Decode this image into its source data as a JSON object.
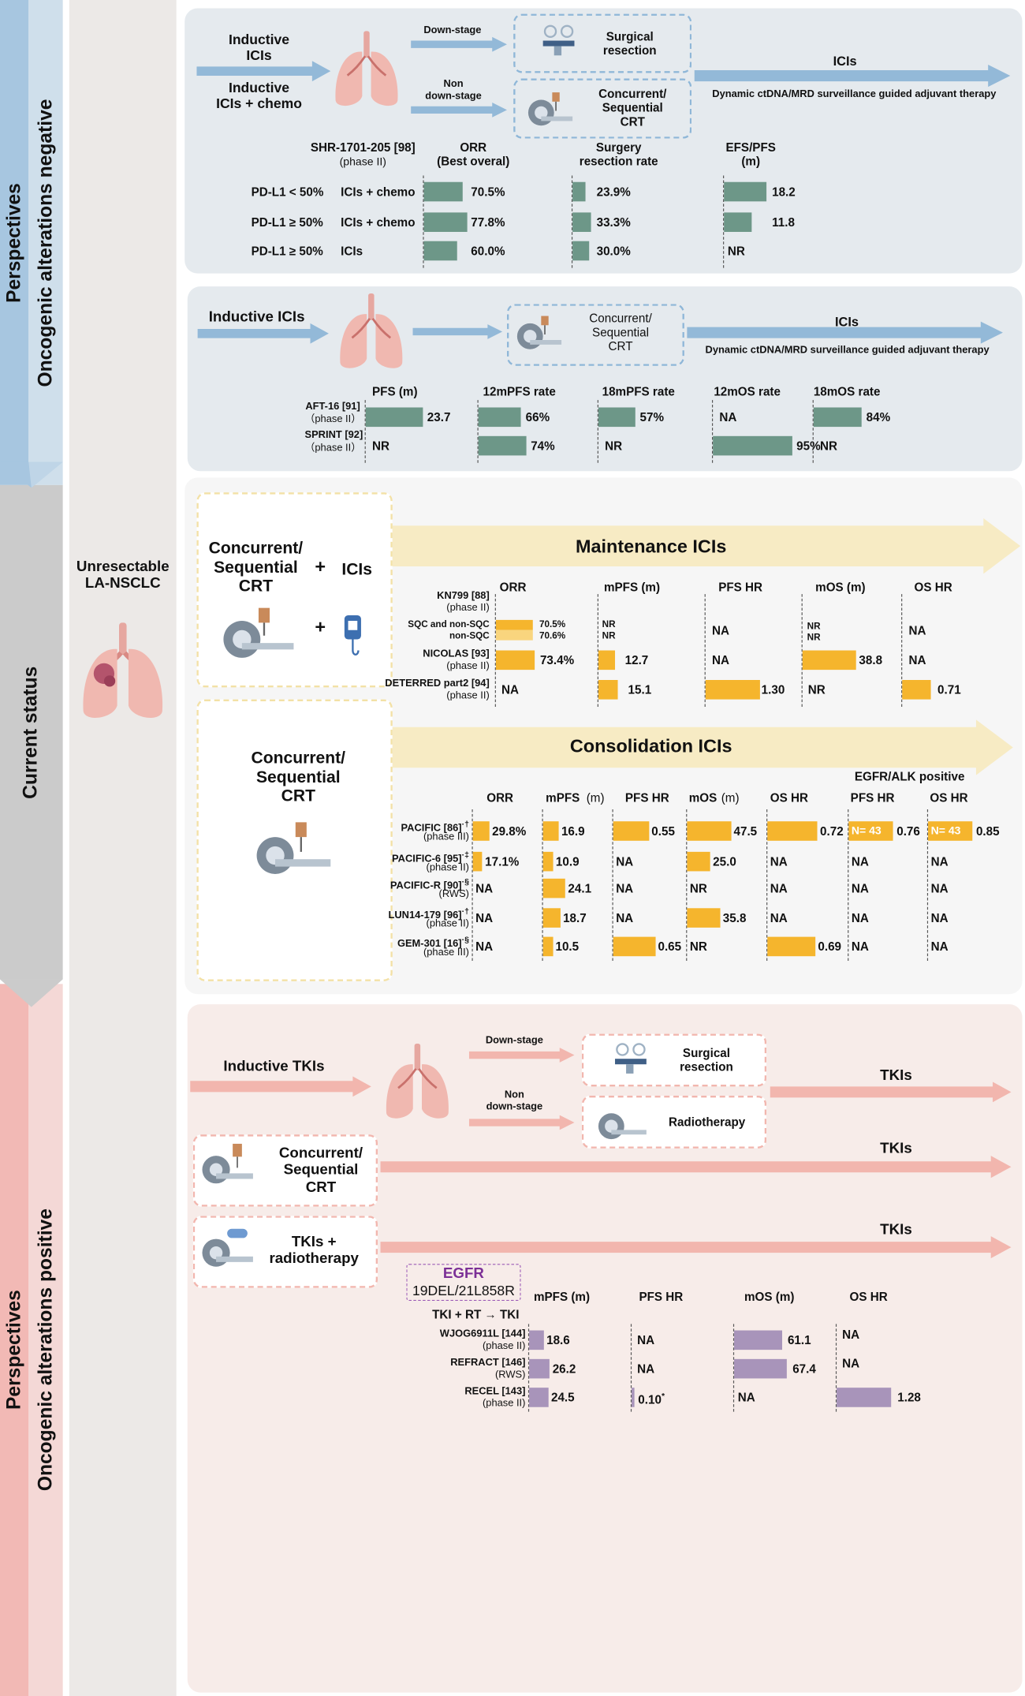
{
  "colors": {
    "green": "#6d9788",
    "yellow": "#f5b52d",
    "yellow_light": "#f9d57e",
    "purple": "#a894ba",
    "blue_arrow": "#93b9d8",
    "pink_arrow": "#f2b6ae",
    "cream_arrow": "#f7ebc4"
  },
  "left": {
    "persp_neg": "Perspectives",
    "onco_neg": "Oncogenic alterations negative",
    "current": "Current status",
    "persp_pos": "Perspectives",
    "onco_pos": "Oncogenic alterations positive",
    "center_label": "Unresectable\nLA-NSCLC"
  },
  "p1": {
    "inductive_icis": "Inductive\nICIs",
    "inductive_chemo": "Inductive\nICIs + chemo",
    "down_stage": "Down-stage",
    "non_down_stage": "Non\ndown-stage",
    "surgical": "Surgical\nresection",
    "crt": "Concurrent/\nSequential\nCRT",
    "icis": "ICIs",
    "dynamic": "Dynamic ctDNA/MRD surveillance guided adjuvant therapy",
    "trial": "SHR-1701-205 [98]",
    "trial_phase": "(phase II)",
    "h_orr": "ORR\n(Best overal)",
    "h_surg": "Surgery\nresection rate",
    "h_efs": "EFS/PFS\n(m)",
    "rows": [
      {
        "group": "PD-L1 < 50%",
        "arm": "ICIs + chemo",
        "orr": "70.5%",
        "orr_v": 70.5,
        "surg": "23.9%",
        "surg_v": 23.9,
        "efs": "18.2",
        "efs_v": 18.2
      },
      {
        "group": "PD-L1 ≥ 50%",
        "arm": "ICIs + chemo",
        "orr": "77.8%",
        "orr_v": 77.8,
        "surg": "33.3%",
        "surg_v": 33.3,
        "efs": "11.8",
        "efs_v": 11.8
      },
      {
        "group": "PD-L1 ≥ 50%",
        "arm": "ICIs",
        "orr": "60.0%",
        "orr_v": 60.0,
        "surg": "30.0%",
        "surg_v": 30.0,
        "efs": "NR",
        "efs_v": 0
      }
    ]
  },
  "p2": {
    "inductive": "Inductive ICIs",
    "crt": "Concurrent/\nSequential\nCRT",
    "icis": "ICIs",
    "dynamic": "Dynamic ctDNA/MRD surveillance guided adjuvant therapy",
    "headers": [
      "PFS (m)",
      "12mPFS rate",
      "18mPFS rate",
      "12mOS rate",
      "18mOS rate"
    ],
    "rows": [
      {
        "name": "AFT-16 [91]",
        "phase": "（phase II）",
        "cells": [
          {
            "t": "23.7",
            "v": 23.7
          },
          {
            "t": "66%",
            "v": 66
          },
          {
            "t": "57%",
            "v": 57
          },
          {
            "t": "NA",
            "v": 0
          },
          {
            "t": "84%",
            "v": 84
          }
        ]
      },
      {
        "name": "SPRINT [92]",
        "phase": "（phase II）",
        "cells": [
          {
            "t": "NR",
            "v": 0
          },
          {
            "t": "74%",
            "v": 74
          },
          {
            "t": "NR",
            "v": 0
          },
          {
            "t": "95%",
            "v": 95
          },
          {
            "t": "NR",
            "v": 0
          }
        ]
      }
    ]
  },
  "p3": {
    "crt": "Concurrent/\nSequential\nCRT",
    "plus": "+",
    "icis": "ICIs",
    "maint_title": "Maintenance ICIs",
    "headers": [
      "ORR",
      "mPFS (m)",
      "PFS HR",
      "mOS (m)",
      "OS HR"
    ],
    "rows": [
      {
        "name": "KN799 [88]",
        "phase": "(phase II)"
      },
      {
        "name": "SQC and non-SQC\nnon-SQC",
        "orr": "70.5%\n70.6%",
        "pfs": "NR\nNR",
        "pfshr": "NA",
        "os": "NR\nNR",
        "oshr": "NA"
      },
      {
        "name": "NICOLAS [93]",
        "phase": "(phase II)",
        "orr": "73.4%",
        "orr_v": 73.4,
        "pfs": "12.7",
        "pfs_v": 12.7,
        "pfshr": "NA",
        "os": "38.8",
        "os_v": 38.8,
        "oshr": "NA"
      },
      {
        "name": "DETERRED part2 [94]",
        "phase": "(phase II)",
        "orr": "NA",
        "pfs": "15.1",
        "pfs_v": 15.1,
        "pfshr": "1.30",
        "pfshr_v": 1.3,
        "os": "NR",
        "oshr": "0.71",
        "oshr_v": 0.71
      }
    ]
  },
  "p4": {
    "crt": "Concurrent/\nSequential\nCRT",
    "cons_title": "Consolidation ICIs",
    "egfr_alk": "EGFR/ALK positive",
    "headers": [
      "ORR",
      "mPFS",
      "PFS HR",
      "mOS",
      "OS HR",
      "PFS HR",
      "OS HR"
    ],
    "unit": "(m)",
    "n43": "N= 43",
    "rows": [
      {
        "name": "PACIFIC [86]",
        "sup": "·†",
        "phase": "(phase III)",
        "v": [
          "29.8%",
          "16.9",
          "0.55",
          "47.5",
          "0.72",
          "0.76",
          "0.85"
        ]
      },
      {
        "name": "PACIFIC-6 [95]",
        "sup": "·‡",
        "phase": "(phase II)",
        "v": [
          "17.1%",
          "10.9",
          "NA",
          "25.0",
          "NA",
          "NA",
          "NA"
        ]
      },
      {
        "name": "PACIFIC-R [90]",
        "sup": "·§",
        "phase": "(RWS)",
        "v": [
          "NA",
          "24.1",
          "NA",
          "NR",
          "NA",
          "NA",
          "NA"
        ]
      },
      {
        "name": "LUN14-179 [96]",
        "sup": "·†",
        "phase": "(phase II)",
        "v": [
          "NA",
          "18.7",
          "NA",
          "35.8",
          "NA",
          "NA",
          "NA"
        ]
      },
      {
        "name": "GEM-301 [16]",
        "sup": "·§",
        "phase": "(phase III)",
        "v": [
          "NA",
          "10.5",
          "0.65",
          "NR",
          "0.69",
          "NA",
          "NA"
        ]
      }
    ]
  },
  "p5": {
    "inductive_tkis": "Inductive TKIs",
    "down_stage": "Down-stage",
    "non_down_stage": "Non\ndown-stage",
    "surgical": "Surgical\nresection",
    "radiotherapy": "Radiotherapy",
    "tkis": "TKIs",
    "crt": "Concurrent/\nSequential\nCRT",
    "tkis_rt": "TKIs +\nradiotherapy",
    "egfr": "EGFR",
    "egfr_sub": "19DEL/21L858R",
    "tki_rt": "TKI + RT → TKI",
    "headers": [
      "mPFS (m)",
      "PFS HR",
      "mOS (m)",
      "OS HR"
    ],
    "rows": [
      {
        "name": "WJOG6911L [144]",
        "phase": "(phase II)",
        "pfs": "18.6",
        "pfs_v": 18.6,
        "pfshr": "NA",
        "os": "61.1",
        "os_v": 61.1,
        "oshr": "NA"
      },
      {
        "name": "REFRACT [146]",
        "phase": "(RWS)",
        "pfs": "26.2",
        "pfs_v": 26.2,
        "pfshr": "NA",
        "os": "67.4",
        "os_v": 67.4,
        "oshr": "NA"
      },
      {
        "name": "RECEL [143]",
        "phase": "(phase II)",
        "pfs": "24.5",
        "pfs_v": 24.5,
        "pfshr": "0.10",
        "pfshr_sup": "*",
        "pfshr_v": 0.1,
        "os": "NA",
        "oshr": "1.28",
        "oshr_v": 1.28
      }
    ]
  }
}
